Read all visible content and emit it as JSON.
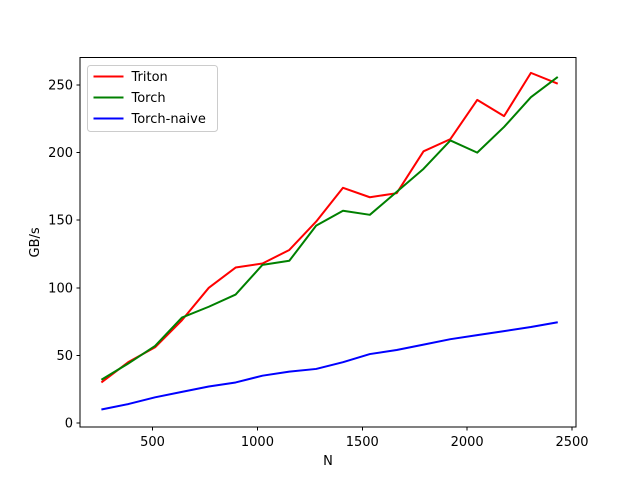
{
  "figure": {
    "background": "#ffffff",
    "axis_color": "#000000"
  },
  "chart_data": {
    "type": "line",
    "title": "",
    "xlabel": "N",
    "ylabel": "GB/s",
    "grid": false,
    "legend_position": "upper left",
    "xlim": [
      154,
      2519
    ],
    "ylim": [
      -3.1,
      270.3
    ],
    "x_ticks": [
      500,
      1000,
      1500,
      2000,
      2500
    ],
    "y_ticks": [
      0,
      50,
      100,
      150,
      200,
      250
    ],
    "x": [
      256,
      384,
      512,
      640,
      768,
      896,
      1024,
      1152,
      1280,
      1408,
      1536,
      1664,
      1792,
      1920,
      2048,
      2176,
      2304,
      2432
    ],
    "series": [
      {
        "name": "Triton",
        "color": "#ff0000",
        "values": [
          30,
          45,
          56,
          76,
          100,
          115,
          118,
          128,
          149,
          174,
          167,
          170,
          201,
          210,
          239,
          227,
          259,
          251
        ]
      },
      {
        "name": "Torch",
        "color": "#008000",
        "values": [
          32,
          44,
          57,
          78,
          86,
          95,
          117,
          120,
          146,
          157,
          154,
          171,
          188,
          209,
          200,
          219,
          241,
          256
        ]
      },
      {
        "name": "Torch-naive",
        "color": "#0000ff",
        "values": [
          10,
          14,
          19,
          23,
          27,
          30,
          35,
          38,
          40,
          45,
          51,
          54,
          58,
          62,
          65,
          68,
          71,
          74.5
        ]
      }
    ]
  }
}
